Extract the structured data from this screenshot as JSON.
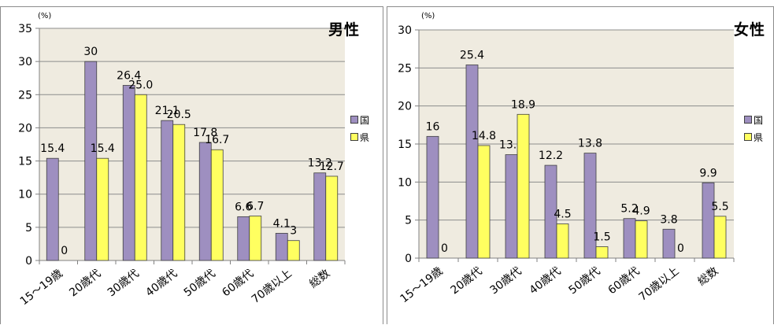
{
  "colors": {
    "national": "#9e8fc0",
    "prefecture": "#ffff60",
    "plot_bg": "#efebe0",
    "grid": "#8c8c8c"
  },
  "legend": {
    "national": "国",
    "prefecture": "県"
  },
  "chart_data": [
    {
      "type": "bar",
      "title": "男性",
      "unit_label": "(%)",
      "categories": [
        "15～19歳",
        "20歳代",
        "30歳代",
        "40歳代",
        "50歳代",
        "60歳代",
        "70歳以上",
        "総数"
      ],
      "series": [
        {
          "name": "国",
          "values": [
            15.4,
            30,
            26.4,
            21.1,
            17.8,
            6.6,
            4.1,
            13.2
          ],
          "labels": [
            "15.4",
            "30",
            "26.4",
            "21.1",
            "17.8",
            "6.6",
            "4.1",
            "13.2"
          ]
        },
        {
          "name": "県",
          "values": [
            0,
            15.4,
            25.0,
            20.5,
            16.7,
            6.7,
            3,
            12.7
          ],
          "labels": [
            "0",
            "15.4",
            "25.0",
            "20.5",
            "16.7",
            "6.7",
            "3",
            "12.7"
          ]
        }
      ],
      "ylim": [
        0,
        35
      ],
      "yticks": [
        0,
        5,
        10,
        15,
        20,
        25,
        30,
        35
      ],
      "grid": true,
      "legend_position": "right"
    },
    {
      "type": "bar",
      "title": "女性",
      "unit_label": "(%)",
      "categories": [
        "15～19歳",
        "20歳代",
        "30歳代",
        "40歳代",
        "50歳代",
        "60歳代",
        "70歳以上",
        "総数"
      ],
      "series": [
        {
          "name": "国",
          "values": [
            16,
            25.4,
            13.6,
            12.2,
            13.8,
            5.2,
            3.8,
            9.9
          ],
          "labels": [
            "16",
            "25.4",
            "13.6",
            "12.2",
            "13.8",
            "5.2",
            "3.8",
            "9.9"
          ]
        },
        {
          "name": "県",
          "values": [
            0,
            14.8,
            18.9,
            4.5,
            1.5,
            4.9,
            0,
            5.5
          ],
          "labels": [
            "0",
            "14.8",
            "18.9",
            "4.5",
            "1.5",
            "4.9",
            "0",
            "5.5"
          ]
        }
      ],
      "ylim": [
        0,
        30
      ],
      "yticks": [
        0,
        5,
        10,
        15,
        20,
        25,
        30
      ],
      "grid": true,
      "legend_position": "right"
    }
  ]
}
